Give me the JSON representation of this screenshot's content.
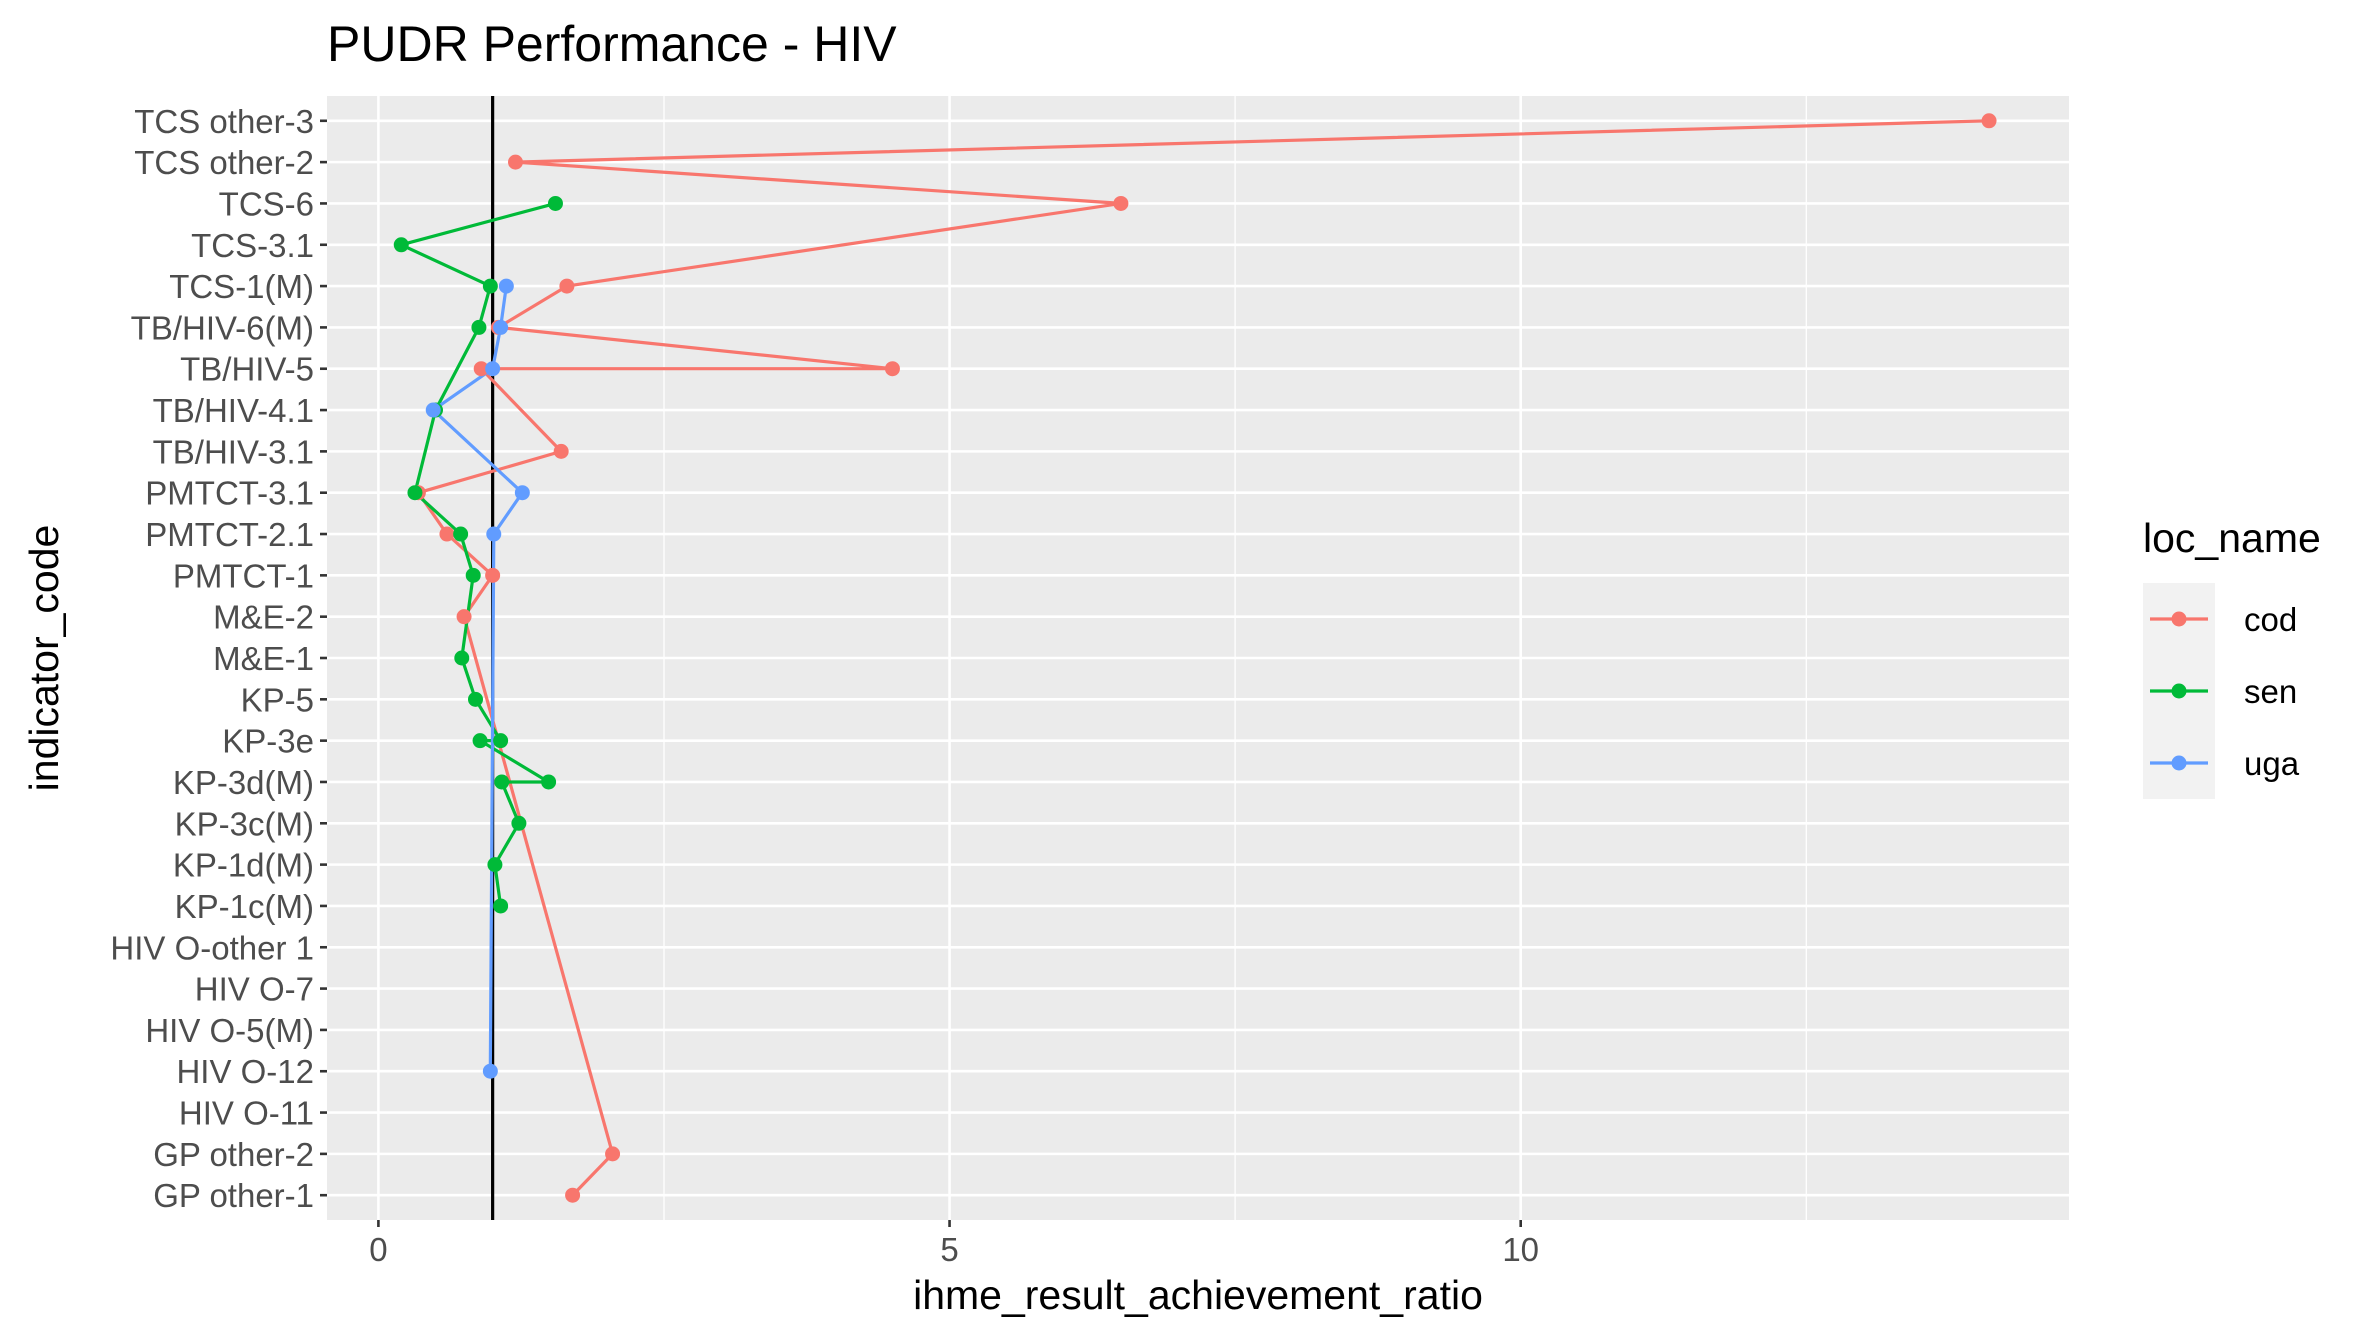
{
  "chart_data": {
    "type": "line",
    "title": "PUDR Performance - HIV",
    "xlabel": "ihme_result_achievement_ratio",
    "ylabel": "indicator_code",
    "xlim": [
      -0.45,
      14.8
    ],
    "x_ticks": [
      0,
      5,
      10
    ],
    "x_tick_labels": [
      "0",
      "5",
      "10"
    ],
    "reference_line_x": 1,
    "grid": true,
    "legend": {
      "title": "loc_name",
      "position": "right"
    },
    "categories": [
      "GP other-1",
      "GP other-2",
      "HIV O-11",
      "HIV O-12",
      "HIV O-5(M)",
      "HIV O-7",
      "HIV O-other 1",
      "KP-1c(M)",
      "KP-1d(M)",
      "KP-3c(M)",
      "KP-3d(M)",
      "KP-3e",
      "KP-5",
      "M&E-1",
      "M&E-2",
      "PMTCT-1",
      "PMTCT-2.1",
      "PMTCT-3.1",
      "TB/HIV-3.1",
      "TB/HIV-4.1",
      "TB/HIV-5",
      "TB/HIV-6(M)",
      "TCS-1(M)",
      "TCS-3.1",
      "TCS-6",
      "TCS other-2",
      "TCS other-3"
    ],
    "series": [
      {
        "name": "cod",
        "color": "#F8766D",
        "points": [
          {
            "category": "TCS other-3",
            "x": 14.1
          },
          {
            "category": "TCS other-2",
            "x": 1.2
          },
          {
            "category": "TCS-6",
            "x": 6.5
          },
          {
            "category": "TCS-1(M)",
            "x": 1.65
          },
          {
            "category": "TB/HIV-6(M)",
            "x": 1.05
          },
          {
            "category": "TB/HIV-5",
            "x": 4.5
          },
          {
            "category": "TB/HIV-5",
            "x": 0.9
          },
          {
            "category": "TB/HIV-3.1",
            "x": 1.6
          },
          {
            "category": "PMTCT-3.1",
            "x": 0.35
          },
          {
            "category": "PMTCT-2.1",
            "x": 0.6
          },
          {
            "category": "PMTCT-1",
            "x": 1.0
          },
          {
            "category": "M&E-2",
            "x": 0.75
          },
          {
            "category": "GP other-2",
            "x": 2.05
          },
          {
            "category": "GP other-1",
            "x": 1.7
          }
        ]
      },
      {
        "name": "sen",
        "color": "#00BA38",
        "points": [
          {
            "category": "TCS-6",
            "x": 1.55
          },
          {
            "category": "TCS-3.1",
            "x": 0.2
          },
          {
            "category": "TCS-1(M)",
            "x": 0.98
          },
          {
            "category": "TB/HIV-6(M)",
            "x": 0.88
          },
          {
            "category": "TB/HIV-4.1",
            "x": 0.5
          },
          {
            "category": "PMTCT-3.1",
            "x": 0.32
          },
          {
            "category": "PMTCT-2.1",
            "x": 0.72
          },
          {
            "category": "PMTCT-1",
            "x": 0.83
          },
          {
            "category": "M&E-1",
            "x": 0.73
          },
          {
            "category": "KP-5",
            "x": 0.85
          },
          {
            "category": "KP-3e",
            "x": 1.07
          },
          {
            "category": "KP-3e",
            "x": 0.89
          },
          {
            "category": "KP-3d(M)",
            "x": 1.49
          },
          {
            "category": "KP-3d(M)",
            "x": 1.08
          },
          {
            "category": "KP-3c(M)",
            "x": 1.23
          },
          {
            "category": "KP-1d(M)",
            "x": 1.02
          },
          {
            "category": "KP-1c(M)",
            "x": 1.07
          }
        ]
      },
      {
        "name": "uga",
        "color": "#619CFF",
        "points": [
          {
            "category": "TCS-1(M)",
            "x": 1.12
          },
          {
            "category": "TB/HIV-6(M)",
            "x": 1.07
          },
          {
            "category": "TB/HIV-5",
            "x": 1.0
          },
          {
            "category": "TB/HIV-4.1",
            "x": 0.48
          },
          {
            "category": "PMTCT-3.1",
            "x": 1.26
          },
          {
            "category": "PMTCT-2.1",
            "x": 1.01
          },
          {
            "category": "HIV O-12",
            "x": 0.98
          }
        ]
      }
    ]
  }
}
